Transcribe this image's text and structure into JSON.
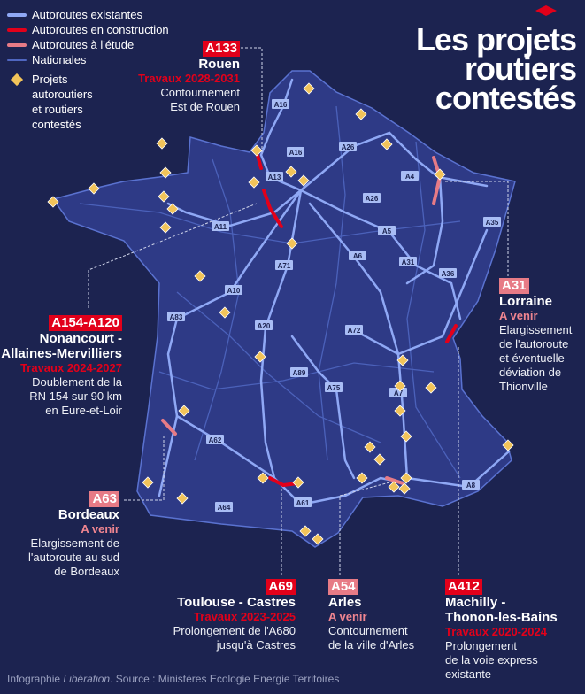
{
  "title": "Les projets routiers contestés",
  "legend": {
    "items": [
      "Autoroutes existantes",
      "Autoroutes en construction",
      "Autoroutes à l'étude",
      "Nationales"
    ],
    "project_label_1": "Projets",
    "project_label_2": "autoroutiers",
    "project_label_3": "et routiers",
    "project_label_4": "contestés"
  },
  "colors": {
    "existing": "#7f9cf0",
    "construction": "#e2001a",
    "study": "#e77b86",
    "national": "#4f66c0",
    "project": "#f2c45a",
    "background": "#1c2350"
  },
  "road_labels": [
    "A16",
    "A16",
    "A26",
    "A4",
    "A13",
    "A26",
    "A35",
    "A11",
    "A5",
    "A6",
    "A31",
    "A71",
    "A36",
    "A10",
    "A83",
    "A20",
    "A72",
    "A89",
    "A75",
    "A7",
    "A62",
    "A8",
    "A61",
    "A64"
  ],
  "projects": {
    "a133": {
      "tag": "A133",
      "place": "Rouen",
      "status": "Travaux  2028-2031",
      "desc1": "Contournement",
      "desc2": "Est de Rouen"
    },
    "a154": {
      "tag": "A154-A120",
      "place1": "Nonancourt -",
      "place2": "Allaines-Mervilliers",
      "status": "Travaux  2024-2027",
      "desc1": "Doublement de la",
      "desc2": "RN 154 sur 90 km",
      "desc3": "en Eure-et-Loir"
    },
    "a63": {
      "tag": "A63",
      "place": "Bordeaux",
      "status": "A venir",
      "desc1": "Elargissement de",
      "desc2": "l'autoroute au sud",
      "desc3": "de Bordeaux"
    },
    "a69": {
      "tag": "A69",
      "place": "Toulouse - Castres",
      "status": "Travaux  2023-2025",
      "desc1": "Prolongement de l'A680",
      "desc2": "jusqu'à Castres"
    },
    "a54": {
      "tag": "A54",
      "place": "Arles",
      "status": "A venir",
      "desc1": "Contournement",
      "desc2": "de la ville d'Arles"
    },
    "a412": {
      "tag": "A412",
      "place1": "Machilly -",
      "place2": "Thonon-les-Bains",
      "status": "Travaux  2020-2024",
      "desc1": "Prolongement",
      "desc2": "de la voie express",
      "desc3": "existante"
    },
    "a31": {
      "tag": "A31",
      "place": "Lorraine",
      "status": "A venir",
      "desc1": "Elargissement",
      "desc2": "de l'autoroute",
      "desc3": "et éventuelle",
      "desc4": "déviation de",
      "desc5": "Thionville"
    }
  },
  "footer": {
    "prefix": "Infographie ",
    "brand": "Libération",
    "suffix": ". Source : Ministères Ecologie Energie Territoires"
  }
}
